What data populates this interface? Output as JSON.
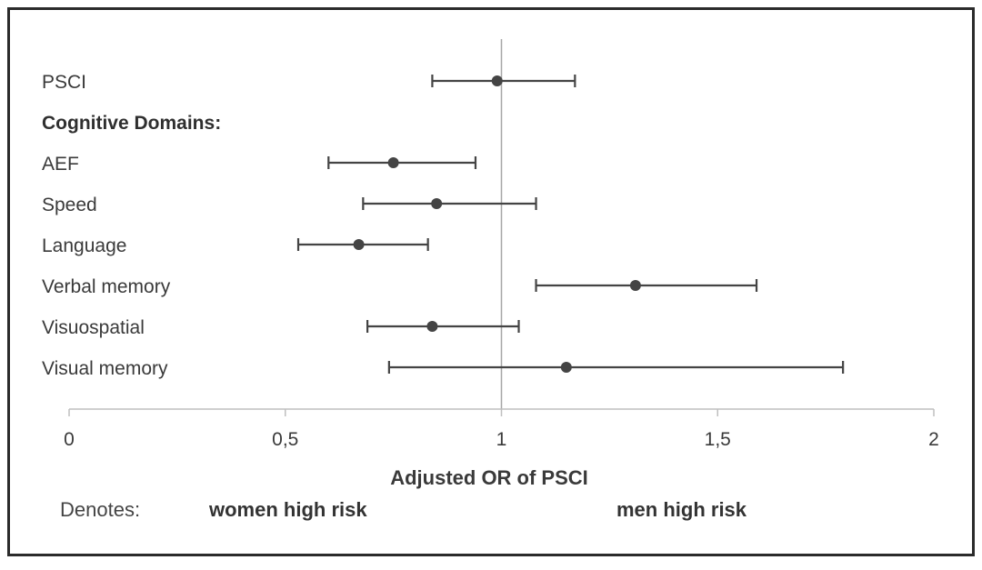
{
  "chart_data": {
    "type": "forest",
    "xlabel": "Adjusted OR of PSCI",
    "xlim": [
      0,
      2
    ],
    "xticks": [
      0,
      0.5,
      1,
      1.5,
      2
    ],
    "xtick_labels": [
      "0",
      "0,5",
      "1",
      "1,5",
      "2"
    ],
    "reference_line": 1,
    "rows": [
      {
        "label": "PSCI",
        "or": 0.99,
        "ci_low": 0.84,
        "ci_high": 1.17,
        "bold": false
      },
      {
        "label": "Cognitive Domains:",
        "header": true,
        "bold": true
      },
      {
        "label": "AEF",
        "or": 0.75,
        "ci_low": 0.6,
        "ci_high": 0.94,
        "bold": false
      },
      {
        "label": "Speed",
        "or": 0.85,
        "ci_low": 0.68,
        "ci_high": 1.08,
        "bold": false
      },
      {
        "label": "Language",
        "or": 0.67,
        "ci_low": 0.53,
        "ci_high": 0.83,
        "bold": false
      },
      {
        "label": "Verbal memory",
        "or": 1.31,
        "ci_low": 1.08,
        "ci_high": 1.59,
        "bold": false
      },
      {
        "label": "Visuospatial",
        "or": 0.84,
        "ci_low": 0.69,
        "ci_high": 1.04,
        "bold": false
      },
      {
        "label": "Visual memory",
        "or": 1.15,
        "ci_low": 0.74,
        "ci_high": 1.79,
        "bold": false
      }
    ],
    "colors": {
      "marker": "#444444",
      "ci_line": "#444444",
      "axis": "#bfbfbf",
      "ref_line": "#a6a6a6"
    }
  },
  "denotes": {
    "label": "Denotes:",
    "left": "women high risk",
    "right": "men high risk"
  }
}
